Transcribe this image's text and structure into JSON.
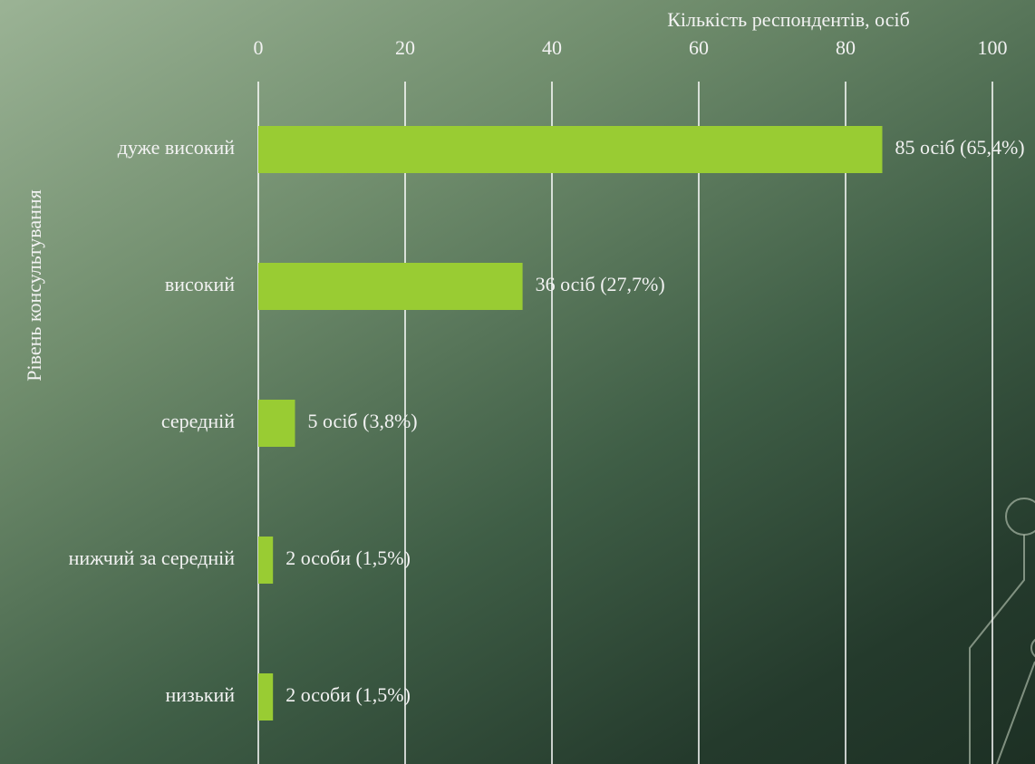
{
  "chart_data": {
    "type": "bar",
    "orientation": "horizontal",
    "x_label": "Кількість респондентів, осіб",
    "y_label": "Рівень консультування",
    "categories": [
      "дуже високий",
      "високий",
      "середній",
      "нижчий за середній",
      "низький"
    ],
    "values": [
      85,
      36,
      5,
      2,
      2
    ],
    "value_labels": [
      "85 осіб (65,4%)",
      "36 осіб (27,7%)",
      "5 осіб (3,8%)",
      "2 особи (1,5%)",
      "2 особи (1,5%)"
    ],
    "color": "#99cc33",
    "xlim": [
      0,
      100
    ],
    "xticks": [
      0,
      20,
      40,
      60,
      80,
      100
    ],
    "grid": true
  }
}
